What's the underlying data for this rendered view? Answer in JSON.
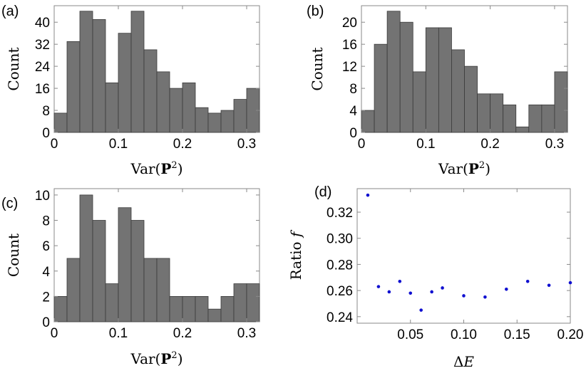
{
  "chart_data": [
    {
      "id": "a",
      "type": "bar",
      "panel_label": "(a)",
      "xlabel_prefix": "Var(",
      "xlabel_bold": "P",
      "xlabel_sup": "2",
      "xlabel_suffix": ")",
      "ylabel": "Count",
      "bin_width": 0.02,
      "xlim": [
        0,
        0.32
      ],
      "ylim": [
        0,
        46
      ],
      "xticks": [
        0,
        0.1,
        0.2,
        0.3
      ],
      "xtick_labels": [
        "0",
        "0.1",
        "0.2",
        "0.3"
      ],
      "yticks": [
        0,
        8,
        16,
        24,
        32,
        40
      ],
      "ytick_labels": [
        "0",
        "8",
        "16",
        "24",
        "32",
        "40"
      ],
      "values": [
        7,
        33,
        44,
        41,
        18,
        36,
        44,
        30,
        22,
        16,
        18,
        9,
        7,
        8,
        12,
        16
      ]
    },
    {
      "id": "b",
      "type": "bar",
      "panel_label": "(b)",
      "xlabel_prefix": "Var(",
      "xlabel_bold": "P",
      "xlabel_sup": "2",
      "xlabel_suffix": ")",
      "ylabel": "Count",
      "bin_width": 0.02,
      "xlim": [
        0,
        0.32
      ],
      "ylim": [
        0,
        23
      ],
      "xticks": [
        0,
        0.1,
        0.2,
        0.3
      ],
      "xtick_labels": [
        "0",
        "0.1",
        "0.2",
        "0.3"
      ],
      "yticks": [
        0,
        4,
        8,
        12,
        16,
        20
      ],
      "ytick_labels": [
        "0",
        "4",
        "8",
        "12",
        "16",
        "20"
      ],
      "values": [
        4,
        16,
        22,
        20,
        11,
        19,
        19,
        15,
        12,
        7,
        7,
        5,
        1,
        5,
        5,
        11
      ]
    },
    {
      "id": "c",
      "type": "bar",
      "panel_label": "(c)",
      "xlabel_prefix": "Var(",
      "xlabel_bold": "P",
      "xlabel_sup": "2",
      "xlabel_suffix": ")",
      "ylabel": "Count",
      "bin_width": 0.02,
      "xlim": [
        0,
        0.32
      ],
      "ylim": [
        0,
        10.5
      ],
      "xticks": [
        0,
        0.1,
        0.2,
        0.3
      ],
      "xtick_labels": [
        "0",
        "0.1",
        "0.2",
        "0.3"
      ],
      "yticks": [
        0,
        2,
        4,
        6,
        8,
        10
      ],
      "ytick_labels": [
        "0",
        "2",
        "4",
        "6",
        "8",
        "10"
      ],
      "values": [
        2,
        5,
        10,
        8,
        3,
        9,
        8,
        5,
        5,
        2,
        2,
        2,
        1,
        2,
        3,
        3
      ]
    },
    {
      "id": "d",
      "type": "scatter",
      "panel_label": "(d)",
      "xlabel_prefix": "Δ",
      "xlabel_var": "E",
      "ylabel_prefix": "Ratio ",
      "ylabel_var": "f",
      "xlim": [
        0,
        0.2
      ],
      "ylim": [
        0.235,
        0.338
      ],
      "xticks": [
        0.05,
        0.1,
        0.15,
        0.2
      ],
      "xtick_labels": [
        "0.05",
        "0.10",
        "0.15",
        "0.20"
      ],
      "yticks": [
        0.24,
        0.26,
        0.28,
        0.3,
        0.32
      ],
      "ytick_labels": [
        "0.24",
        "0.26",
        "0.28",
        "0.30",
        "0.32"
      ],
      "x": [
        0.01,
        0.02,
        0.03,
        0.04,
        0.05,
        0.06,
        0.07,
        0.08,
        0.1,
        0.12,
        0.14,
        0.16,
        0.18,
        0.2
      ],
      "y": [
        0.333,
        0.263,
        0.259,
        0.267,
        0.258,
        0.245,
        0.259,
        0.262,
        0.256,
        0.255,
        0.261,
        0.267,
        0.264,
        0.266
      ],
      "color": "#1010d0"
    }
  ]
}
